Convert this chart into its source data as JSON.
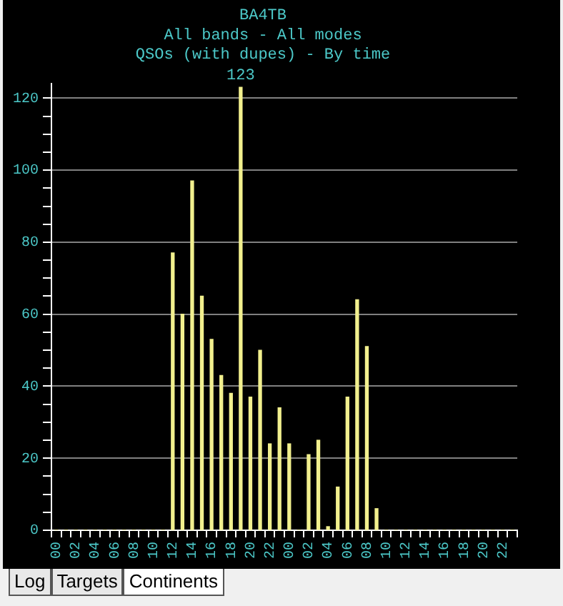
{
  "chart_data": {
    "type": "bar",
    "title": "BA4TB",
    "subtitle": "All bands - All modes\nQSOs (with dupes) - By time",
    "categories": [
      "00",
      null,
      "02",
      null,
      "04",
      null,
      "06",
      null,
      "08",
      null,
      "10",
      null,
      "12",
      null,
      "14",
      null,
      "16",
      null,
      "18",
      null,
      "20",
      null,
      "22",
      null,
      "00",
      null,
      "02",
      null,
      "04",
      null,
      "06",
      null,
      "08",
      null,
      "10",
      null,
      "12",
      null,
      "14",
      null,
      "16",
      null,
      "18",
      null,
      "20",
      null,
      "22",
      null
    ],
    "values": [
      0,
      0,
      0,
      0,
      0,
      0,
      0,
      0,
      0,
      0,
      0,
      0,
      77,
      60,
      97,
      65,
      53,
      43,
      38,
      123,
      37,
      50,
      24,
      34,
      24,
      0,
      21,
      25,
      1,
      12,
      37,
      64,
      51,
      6,
      0,
      0,
      0,
      0,
      0,
      0,
      0,
      0,
      0,
      0,
      0,
      0,
      0,
      0
    ],
    "value_labels": [
      null,
      null,
      null,
      null,
      null,
      null,
      null,
      null,
      null,
      null,
      null,
      null,
      null,
      null,
      null,
      null,
      null,
      null,
      null,
      "123",
      null,
      null,
      null,
      null,
      null,
      null,
      null,
      null,
      null,
      null,
      null,
      null,
      null,
      null,
      null,
      null,
      null,
      null,
      null,
      null,
      null,
      null,
      null,
      null,
      null,
      null,
      null,
      null
    ],
    "color": "#f2f08e",
    "ylim": [
      0,
      124
    ],
    "yticks": [
      0,
      {
        "value": 5,
        "label": null
      },
      {
        "value": 10,
        "label": null
      },
      {
        "value": 15,
        "label": null
      },
      20,
      {
        "value": 25,
        "label": null
      },
      {
        "value": 30,
        "label": null
      },
      {
        "value": 35,
        "label": null
      },
      40,
      {
        "value": 45,
        "label": null
      },
      {
        "value": 50,
        "label": null
      },
      {
        "value": 55,
        "label": null
      },
      60,
      {
        "value": 65,
        "label": null
      },
      {
        "value": 70,
        "label": null
      },
      {
        "value": 75,
        "label": null
      },
      80,
      {
        "value": 85,
        "label": null
      },
      {
        "value": 90,
        "label": null
      },
      {
        "value": 95,
        "label": null
      },
      100,
      {
        "value": 105,
        "label": null
      },
      {
        "value": 110,
        "label": null
      },
      {
        "value": 115,
        "label": null
      },
      120
    ],
    "grid": "y",
    "annotations": [
      "Log",
      "Targets",
      "Continents"
    ]
  }
}
